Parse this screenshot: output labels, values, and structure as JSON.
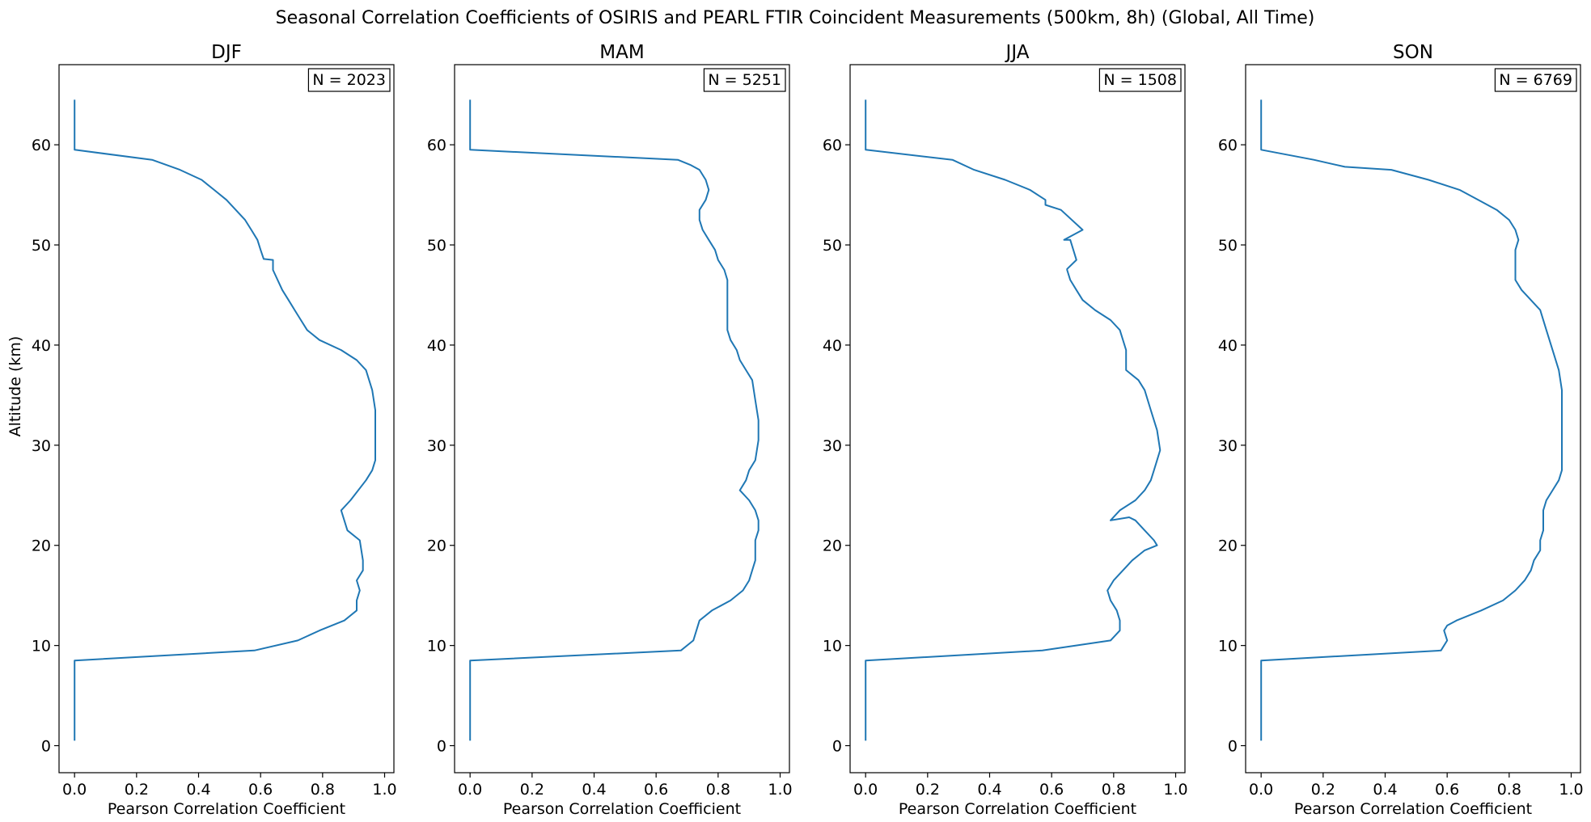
{
  "figure_title": "Seasonal Correlation Coefficients of OSIRIS and PEARL FTIR Coincident Measurements (500km, 8h) (Global, All Time)",
  "colors": {
    "line": "#1f77b4",
    "axes": "#000000",
    "background": "#ffffff"
  },
  "chart_data": [
    {
      "type": "line",
      "title": "DJF",
      "annotation": "N = 2023",
      "xlabel": "Pearson Correlation Coefficient",
      "ylabel": "Altitude (km)",
      "xlim": [
        -0.05,
        1.03
      ],
      "ylim": [
        -2.7,
        68.0
      ],
      "xticks": [
        0.0,
        0.2,
        0.4,
        0.6,
        0.8,
        1.0
      ],
      "xtick_labels": [
        "0.0",
        "0.2",
        "0.4",
        "0.6",
        "0.8",
        "1.0"
      ],
      "yticks": [
        0,
        10,
        20,
        30,
        40,
        50,
        60
      ],
      "ytick_labels": [
        "0",
        "10",
        "20",
        "30",
        "40",
        "50",
        "60"
      ],
      "grid": false,
      "series": [
        {
          "x": [
            0.0,
            0.0,
            0.0,
            0.58,
            0.72,
            0.79,
            0.87,
            0.91,
            0.91,
            0.92,
            0.91,
            0.93,
            0.93,
            0.92,
            0.88,
            0.86,
            0.89,
            0.94,
            0.96,
            0.97,
            0.97,
            0.97,
            0.97,
            0.97,
            0.96,
            0.94,
            0.91,
            0.86,
            0.79,
            0.75,
            0.73,
            0.71,
            0.69,
            0.67,
            0.64,
            0.64,
            0.61,
            0.6,
            0.59,
            0.57,
            0.55,
            0.52,
            0.49,
            0.45,
            0.41,
            0.34,
            0.25,
            0.0,
            0.0,
            0.0,
            0.0
          ],
          "y": [
            0.5,
            5.0,
            8.5,
            9.5,
            10.5,
            11.5,
            12.5,
            13.5,
            14.5,
            15.5,
            16.5,
            17.5,
            18.5,
            20.5,
            21.5,
            23.5,
            24.5,
            26.5,
            27.5,
            28.5,
            29.5,
            30.5,
            31.5,
            33.5,
            35.5,
            37.5,
            38.5,
            39.5,
            40.5,
            41.5,
            42.5,
            43.5,
            44.5,
            45.5,
            47.5,
            48.5,
            48.6,
            49.5,
            50.5,
            51.5,
            52.5,
            53.5,
            54.5,
            55.5,
            56.5,
            57.5,
            58.5,
            59.5,
            60.5,
            62.0,
            64.5
          ]
        }
      ]
    },
    {
      "type": "line",
      "title": "MAM",
      "annotation": "N = 5251",
      "xlabel": "Pearson Correlation Coefficient",
      "ylabel": "",
      "xlim": [
        -0.05,
        1.03
      ],
      "ylim": [
        -2.7,
        68.0
      ],
      "xticks": [
        0.0,
        0.2,
        0.4,
        0.6,
        0.8,
        1.0
      ],
      "xtick_labels": [
        "0.0",
        "0.2",
        "0.4",
        "0.6",
        "0.8",
        "1.0"
      ],
      "yticks": [
        0,
        10,
        20,
        30,
        40,
        50,
        60
      ],
      "ytick_labels": [
        "0",
        "10",
        "20",
        "30",
        "40",
        "50",
        "60"
      ],
      "grid": false,
      "series": [
        {
          "x": [
            0.0,
            0.0,
            0.0,
            0.68,
            0.72,
            0.73,
            0.74,
            0.78,
            0.84,
            0.88,
            0.9,
            0.91,
            0.92,
            0.92,
            0.93,
            0.93,
            0.92,
            0.9,
            0.87,
            0.89,
            0.9,
            0.92,
            0.93,
            0.93,
            0.92,
            0.91,
            0.89,
            0.87,
            0.86,
            0.84,
            0.83,
            0.83,
            0.83,
            0.83,
            0.82,
            0.8,
            0.79,
            0.77,
            0.75,
            0.74,
            0.74,
            0.76,
            0.77,
            0.76,
            0.74,
            0.71,
            0.67,
            0.0,
            0.0,
            0.0,
            0.0
          ],
          "y": [
            0.5,
            5.0,
            8.5,
            9.5,
            10.5,
            11.5,
            12.5,
            13.5,
            14.5,
            15.5,
            16.5,
            17.5,
            18.5,
            20.5,
            21.5,
            22.5,
            23.5,
            24.5,
            25.5,
            26.5,
            27.5,
            28.5,
            30.5,
            32.5,
            34.5,
            36.5,
            37.5,
            38.5,
            39.5,
            40.5,
            41.5,
            42.5,
            44.5,
            46.5,
            47.5,
            48.5,
            49.5,
            50.5,
            51.5,
            52.5,
            53.5,
            54.5,
            55.5,
            56.5,
            57.5,
            58.0,
            58.5,
            59.5,
            60.5,
            62.0,
            64.5
          ]
        }
      ]
    },
    {
      "type": "line",
      "title": "JJA",
      "annotation": "N = 1508",
      "xlabel": "Pearson Correlation Coefficient",
      "ylabel": "",
      "xlim": [
        -0.05,
        1.03
      ],
      "ylim": [
        -2.7,
        68.0
      ],
      "xticks": [
        0.0,
        0.2,
        0.4,
        0.6,
        0.8,
        1.0
      ],
      "xtick_labels": [
        "0.0",
        "0.2",
        "0.4",
        "0.6",
        "0.8",
        "1.0"
      ],
      "yticks": [
        0,
        10,
        20,
        30,
        40,
        50,
        60
      ],
      "ytick_labels": [
        "0",
        "10",
        "20",
        "30",
        "40",
        "50",
        "60"
      ],
      "grid": false,
      "series": [
        {
          "x": [
            0.0,
            0.0,
            0.0,
            0.57,
            0.79,
            0.82,
            0.82,
            0.81,
            0.79,
            0.78,
            0.8,
            0.83,
            0.86,
            0.9,
            0.94,
            0.93,
            0.9,
            0.87,
            0.85,
            0.79,
            0.82,
            0.87,
            0.9,
            0.92,
            0.93,
            0.94,
            0.95,
            0.94,
            0.92,
            0.9,
            0.88,
            0.84,
            0.84,
            0.84,
            0.82,
            0.79,
            0.74,
            0.7,
            0.68,
            0.66,
            0.65,
            0.65,
            0.68,
            0.67,
            0.66,
            0.64,
            0.7,
            0.63,
            0.58,
            0.58,
            0.53,
            0.45,
            0.35,
            0.28,
            0.0,
            0.0,
            0.0,
            0.0
          ],
          "y": [
            0.5,
            5.0,
            8.5,
            9.5,
            10.5,
            11.5,
            12.5,
            13.5,
            14.5,
            15.5,
            16.5,
            17.5,
            18.5,
            19.5,
            20.0,
            20.5,
            21.5,
            22.5,
            22.8,
            22.5,
            23.5,
            24.5,
            25.5,
            26.5,
            27.5,
            28.5,
            29.5,
            31.5,
            33.5,
            35.5,
            36.5,
            37.5,
            38.5,
            39.5,
            41.5,
            42.5,
            43.5,
            44.5,
            45.5,
            46.5,
            47.5,
            47.6,
            48.5,
            49.5,
            50.5,
            50.5,
            51.5,
            53.5,
            54.0,
            54.5,
            55.5,
            56.5,
            57.5,
            58.5,
            59.5,
            60.5,
            62.0,
            64.5
          ]
        }
      ]
    },
    {
      "type": "line",
      "title": "SON",
      "annotation": "N = 6769",
      "xlabel": "Pearson Correlation Coefficient",
      "ylabel": "",
      "xlim": [
        -0.05,
        1.03
      ],
      "ylim": [
        -2.7,
        68.0
      ],
      "xticks": [
        0.0,
        0.2,
        0.4,
        0.6,
        0.8,
        1.0
      ],
      "xtick_labels": [
        "0.0",
        "0.2",
        "0.4",
        "0.6",
        "0.8",
        "1.0"
      ],
      "yticks": [
        0,
        10,
        20,
        30,
        40,
        50,
        60
      ],
      "ytick_labels": [
        "0",
        "10",
        "20",
        "30",
        "40",
        "50",
        "60"
      ],
      "grid": false,
      "series": [
        {
          "x": [
            0.0,
            0.0,
            0.0,
            0.58,
            0.6,
            0.59,
            0.6,
            0.63,
            0.71,
            0.78,
            0.82,
            0.85,
            0.87,
            0.88,
            0.9,
            0.9,
            0.91,
            0.91,
            0.91,
            0.92,
            0.94,
            0.96,
            0.97,
            0.97,
            0.97,
            0.97,
            0.96,
            0.94,
            0.92,
            0.9,
            0.87,
            0.84,
            0.82,
            0.82,
            0.82,
            0.83,
            0.82,
            0.8,
            0.76,
            0.7,
            0.64,
            0.54,
            0.42,
            0.27,
            0.17,
            0.0,
            0.0,
            0.0,
            0.0
          ],
          "y": [
            0.5,
            5.0,
            8.5,
            9.5,
            10.5,
            11.5,
            12.0,
            12.5,
            13.5,
            14.5,
            15.5,
            16.5,
            17.5,
            18.5,
            19.5,
            20.5,
            21.5,
            22.5,
            23.5,
            24.5,
            25.5,
            26.5,
            27.5,
            28.5,
            31.5,
            35.5,
            37.5,
            39.5,
            41.5,
            43.5,
            44.5,
            45.5,
            46.5,
            47.5,
            49.5,
            50.5,
            51.5,
            52.5,
            53.5,
            54.5,
            55.5,
            56.5,
            57.5,
            57.8,
            58.5,
            59.5,
            60.5,
            62.0,
            64.5
          ]
        }
      ]
    }
  ]
}
